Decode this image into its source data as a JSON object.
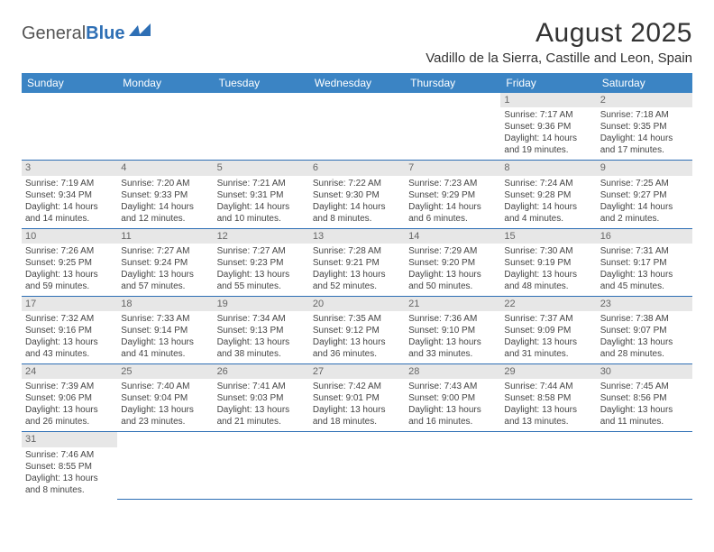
{
  "logo": {
    "part1": "General",
    "part2": "Blue",
    "accent": "#2e6fb5"
  },
  "header": {
    "title": "August 2025",
    "location": "Vadillo de la Sierra, Castille and Leon, Spain"
  },
  "weekdays": [
    "Sunday",
    "Monday",
    "Tuesday",
    "Wednesday",
    "Thursday",
    "Friday",
    "Saturday"
  ],
  "colors": {
    "header_bg": "#3b84c4",
    "header_text": "#ffffff",
    "daynum_bg": "#e7e7e7",
    "border": "#2e6fb5"
  },
  "calendar": {
    "type": "table",
    "first_weekday_index": 5,
    "days": [
      {
        "n": 1,
        "sunrise": "7:17 AM",
        "sunset": "9:36 PM",
        "daylight": "14 hours and 19 minutes."
      },
      {
        "n": 2,
        "sunrise": "7:18 AM",
        "sunset": "9:35 PM",
        "daylight": "14 hours and 17 minutes."
      },
      {
        "n": 3,
        "sunrise": "7:19 AM",
        "sunset": "9:34 PM",
        "daylight": "14 hours and 14 minutes."
      },
      {
        "n": 4,
        "sunrise": "7:20 AM",
        "sunset": "9:33 PM",
        "daylight": "14 hours and 12 minutes."
      },
      {
        "n": 5,
        "sunrise": "7:21 AM",
        "sunset": "9:31 PM",
        "daylight": "14 hours and 10 minutes."
      },
      {
        "n": 6,
        "sunrise": "7:22 AM",
        "sunset": "9:30 PM",
        "daylight": "14 hours and 8 minutes."
      },
      {
        "n": 7,
        "sunrise": "7:23 AM",
        "sunset": "9:29 PM",
        "daylight": "14 hours and 6 minutes."
      },
      {
        "n": 8,
        "sunrise": "7:24 AM",
        "sunset": "9:28 PM",
        "daylight": "14 hours and 4 minutes."
      },
      {
        "n": 9,
        "sunrise": "7:25 AM",
        "sunset": "9:27 PM",
        "daylight": "14 hours and 2 minutes."
      },
      {
        "n": 10,
        "sunrise": "7:26 AM",
        "sunset": "9:25 PM",
        "daylight": "13 hours and 59 minutes."
      },
      {
        "n": 11,
        "sunrise": "7:27 AM",
        "sunset": "9:24 PM",
        "daylight": "13 hours and 57 minutes."
      },
      {
        "n": 12,
        "sunrise": "7:27 AM",
        "sunset": "9:23 PM",
        "daylight": "13 hours and 55 minutes."
      },
      {
        "n": 13,
        "sunrise": "7:28 AM",
        "sunset": "9:21 PM",
        "daylight": "13 hours and 52 minutes."
      },
      {
        "n": 14,
        "sunrise": "7:29 AM",
        "sunset": "9:20 PM",
        "daylight": "13 hours and 50 minutes."
      },
      {
        "n": 15,
        "sunrise": "7:30 AM",
        "sunset": "9:19 PM",
        "daylight": "13 hours and 48 minutes."
      },
      {
        "n": 16,
        "sunrise": "7:31 AM",
        "sunset": "9:17 PM",
        "daylight": "13 hours and 45 minutes."
      },
      {
        "n": 17,
        "sunrise": "7:32 AM",
        "sunset": "9:16 PM",
        "daylight": "13 hours and 43 minutes."
      },
      {
        "n": 18,
        "sunrise": "7:33 AM",
        "sunset": "9:14 PM",
        "daylight": "13 hours and 41 minutes."
      },
      {
        "n": 19,
        "sunrise": "7:34 AM",
        "sunset": "9:13 PM",
        "daylight": "13 hours and 38 minutes."
      },
      {
        "n": 20,
        "sunrise": "7:35 AM",
        "sunset": "9:12 PM",
        "daylight": "13 hours and 36 minutes."
      },
      {
        "n": 21,
        "sunrise": "7:36 AM",
        "sunset": "9:10 PM",
        "daylight": "13 hours and 33 minutes."
      },
      {
        "n": 22,
        "sunrise": "7:37 AM",
        "sunset": "9:09 PM",
        "daylight": "13 hours and 31 minutes."
      },
      {
        "n": 23,
        "sunrise": "7:38 AM",
        "sunset": "9:07 PM",
        "daylight": "13 hours and 28 minutes."
      },
      {
        "n": 24,
        "sunrise": "7:39 AM",
        "sunset": "9:06 PM",
        "daylight": "13 hours and 26 minutes."
      },
      {
        "n": 25,
        "sunrise": "7:40 AM",
        "sunset": "9:04 PM",
        "daylight": "13 hours and 23 minutes."
      },
      {
        "n": 26,
        "sunrise": "7:41 AM",
        "sunset": "9:03 PM",
        "daylight": "13 hours and 21 minutes."
      },
      {
        "n": 27,
        "sunrise": "7:42 AM",
        "sunset": "9:01 PM",
        "daylight": "13 hours and 18 minutes."
      },
      {
        "n": 28,
        "sunrise": "7:43 AM",
        "sunset": "9:00 PM",
        "daylight": "13 hours and 16 minutes."
      },
      {
        "n": 29,
        "sunrise": "7:44 AM",
        "sunset": "8:58 PM",
        "daylight": "13 hours and 13 minutes."
      },
      {
        "n": 30,
        "sunrise": "7:45 AM",
        "sunset": "8:56 PM",
        "daylight": "13 hours and 11 minutes."
      },
      {
        "n": 31,
        "sunrise": "7:46 AM",
        "sunset": "8:55 PM",
        "daylight": "13 hours and 8 minutes."
      }
    ],
    "labels": {
      "sunrise": "Sunrise:",
      "sunset": "Sunset:",
      "daylight": "Daylight:"
    }
  }
}
